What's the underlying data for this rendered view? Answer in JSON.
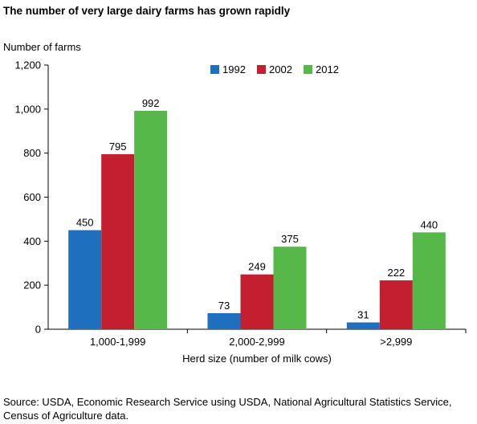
{
  "chart_data": {
    "type": "bar",
    "title": "The number of very large dairy farms has grown rapidly",
    "ylabel": "Number of farms",
    "xlabel": "Herd size (number of milk cows)",
    "categories": [
      "1,000-1,999",
      "2,000-2,999",
      ">2,999"
    ],
    "series": [
      {
        "name": "1992",
        "color": "#1f6fbf",
        "values": [
          450,
          73,
          31
        ]
      },
      {
        "name": "2002",
        "color": "#c41f30",
        "values": [
          795,
          249,
          222
        ]
      },
      {
        "name": "2012",
        "color": "#55b848",
        "values": [
          992,
          375,
          440
        ]
      }
    ],
    "ylim": [
      0,
      1200
    ],
    "yticks": [
      0,
      200,
      400,
      600,
      800,
      1000,
      1200
    ],
    "ytick_labels": [
      "0",
      "200",
      "400",
      "600",
      "800",
      "1,000",
      "1,200"
    ],
    "grid": false,
    "legend_position": "top-right"
  },
  "source": "Source: USDA, Economic Research Service using USDA, National Agricultural Statistics Service, Census of Agriculture data."
}
